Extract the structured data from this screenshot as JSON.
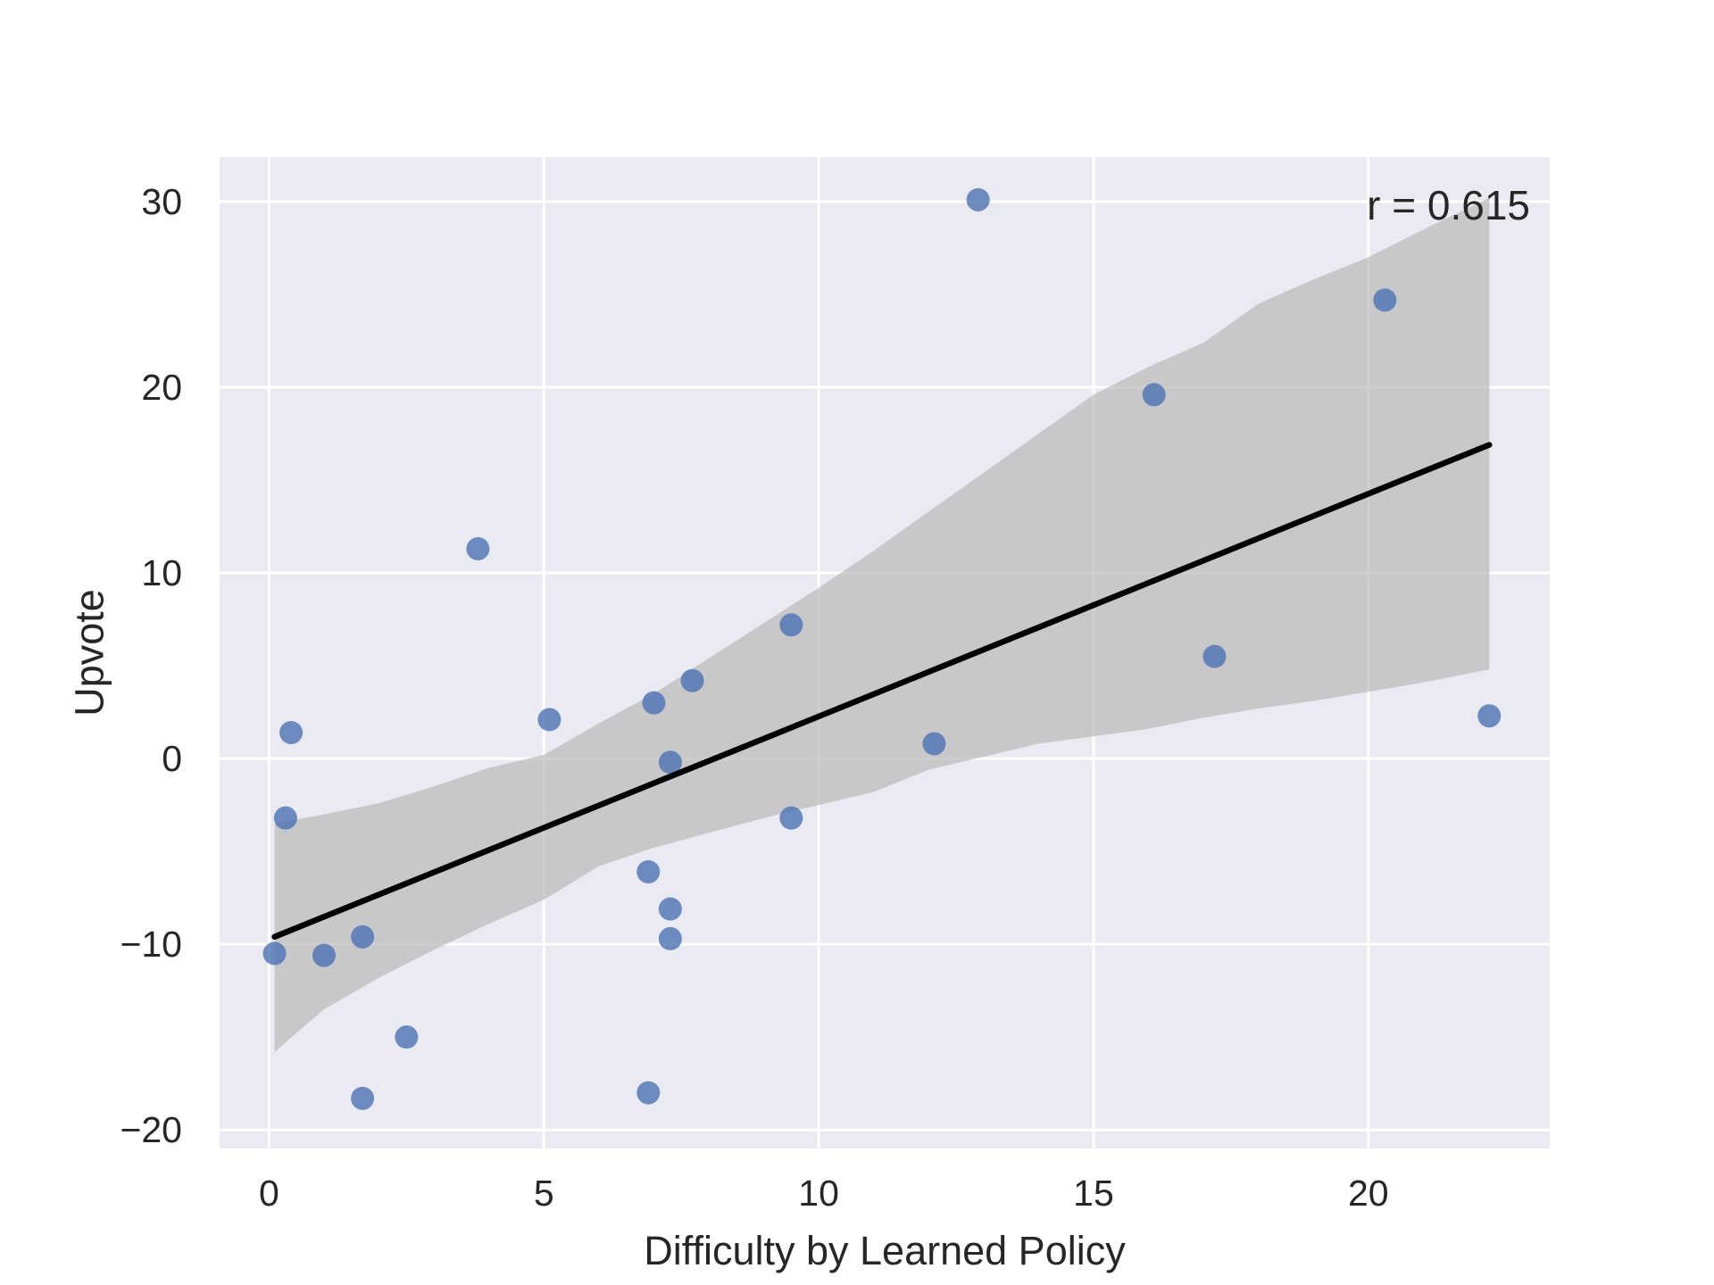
{
  "chart_data": {
    "type": "scatter",
    "xlabel": "Difficulty by Learned Policy",
    "ylabel": "Upvote",
    "xlim": [
      -0.9,
      23.3
    ],
    "ylim": [
      -21.0,
      32.4
    ],
    "xticks": [
      0,
      5,
      10,
      15,
      20
    ],
    "yticks": [
      -20,
      -10,
      0,
      10,
      20,
      30
    ],
    "xtick_labels": [
      "0",
      "5",
      "10",
      "15",
      "20"
    ],
    "ytick_labels": [
      "−20",
      "−10",
      "0",
      "10",
      "20",
      "30"
    ],
    "grid": true,
    "annotation": "r = 0.615",
    "series": [
      {
        "points": [
          {
            "x": 0.1,
            "y": -10.5
          },
          {
            "x": 0.3,
            "y": -3.2
          },
          {
            "x": 0.4,
            "y": 1.4
          },
          {
            "x": 1.0,
            "y": -10.6
          },
          {
            "x": 1.7,
            "y": -18.3
          },
          {
            "x": 1.7,
            "y": -9.6
          },
          {
            "x": 2.5,
            "y": -15.0
          },
          {
            "x": 3.8,
            "y": 11.3
          },
          {
            "x": 5.1,
            "y": 2.1
          },
          {
            "x": 6.9,
            "y": -18.0
          },
          {
            "x": 6.9,
            "y": -6.1
          },
          {
            "x": 7.0,
            "y": 3.0
          },
          {
            "x": 7.3,
            "y": -0.2
          },
          {
            "x": 7.3,
            "y": -8.1
          },
          {
            "x": 7.3,
            "y": -9.7
          },
          {
            "x": 7.7,
            "y": 4.2
          },
          {
            "x": 9.5,
            "y": 7.2
          },
          {
            "x": 9.5,
            "y": -3.2
          },
          {
            "x": 12.1,
            "y": 0.8
          },
          {
            "x": 12.9,
            "y": 30.1
          },
          {
            "x": 16.1,
            "y": 19.6
          },
          {
            "x": 17.2,
            "y": 5.5
          },
          {
            "x": 20.3,
            "y": 24.7
          },
          {
            "x": 22.2,
            "y": 2.3
          }
        ]
      }
    ],
    "regression": {
      "x_start": 0.1,
      "x_end": 22.2,
      "y_start": -9.6,
      "y_end": 16.9,
      "ci_band": [
        {
          "x": 0.1,
          "lower": -15.8,
          "upper": -3.5
        },
        {
          "x": 1.0,
          "lower": -13.5,
          "upper": -3.0
        },
        {
          "x": 2.0,
          "lower": -11.8,
          "upper": -2.4
        },
        {
          "x": 3.0,
          "lower": -10.3,
          "upper": -1.5
        },
        {
          "x": 4.0,
          "lower": -8.9,
          "upper": -0.5
        },
        {
          "x": 5.0,
          "lower": -7.6,
          "upper": 0.2
        },
        {
          "x": 6.0,
          "lower": -5.8,
          "upper": 1.9
        },
        {
          "x": 7.0,
          "lower": -4.8,
          "upper": 3.5
        },
        {
          "x": 8.0,
          "lower": -4.0,
          "upper": 5.4
        },
        {
          "x": 9.0,
          "lower": -3.2,
          "upper": 7.3
        },
        {
          "x": 10.0,
          "lower": -2.5,
          "upper": 9.2
        },
        {
          "x": 11.0,
          "lower": -1.8,
          "upper": 11.2
        },
        {
          "x": 12.0,
          "lower": -0.6,
          "upper": 13.3
        },
        {
          "x": 13.0,
          "lower": 0.1,
          "upper": 15.4
        },
        {
          "x": 14.0,
          "lower": 0.8,
          "upper": 17.5
        },
        {
          "x": 15.0,
          "lower": 1.2,
          "upper": 19.6
        },
        {
          "x": 16.0,
          "lower": 1.6,
          "upper": 21.1
        },
        {
          "x": 17.0,
          "lower": 2.2,
          "upper": 22.4
        },
        {
          "x": 18.0,
          "lower": 2.7,
          "upper": 24.5
        },
        {
          "x": 19.0,
          "lower": 3.1,
          "upper": 25.8
        },
        {
          "x": 20.0,
          "lower": 3.6,
          "upper": 27.0
        },
        {
          "x": 21.0,
          "lower": 4.1,
          "upper": 28.5
        },
        {
          "x": 22.2,
          "lower": 4.8,
          "upper": 30.2
        }
      ]
    },
    "colors": {
      "background": "#eaeaf2",
      "grid": "#ffffff",
      "point": "#4c72b0",
      "line": "#000000",
      "band": "#bbbbbb",
      "text": "#262626"
    }
  }
}
